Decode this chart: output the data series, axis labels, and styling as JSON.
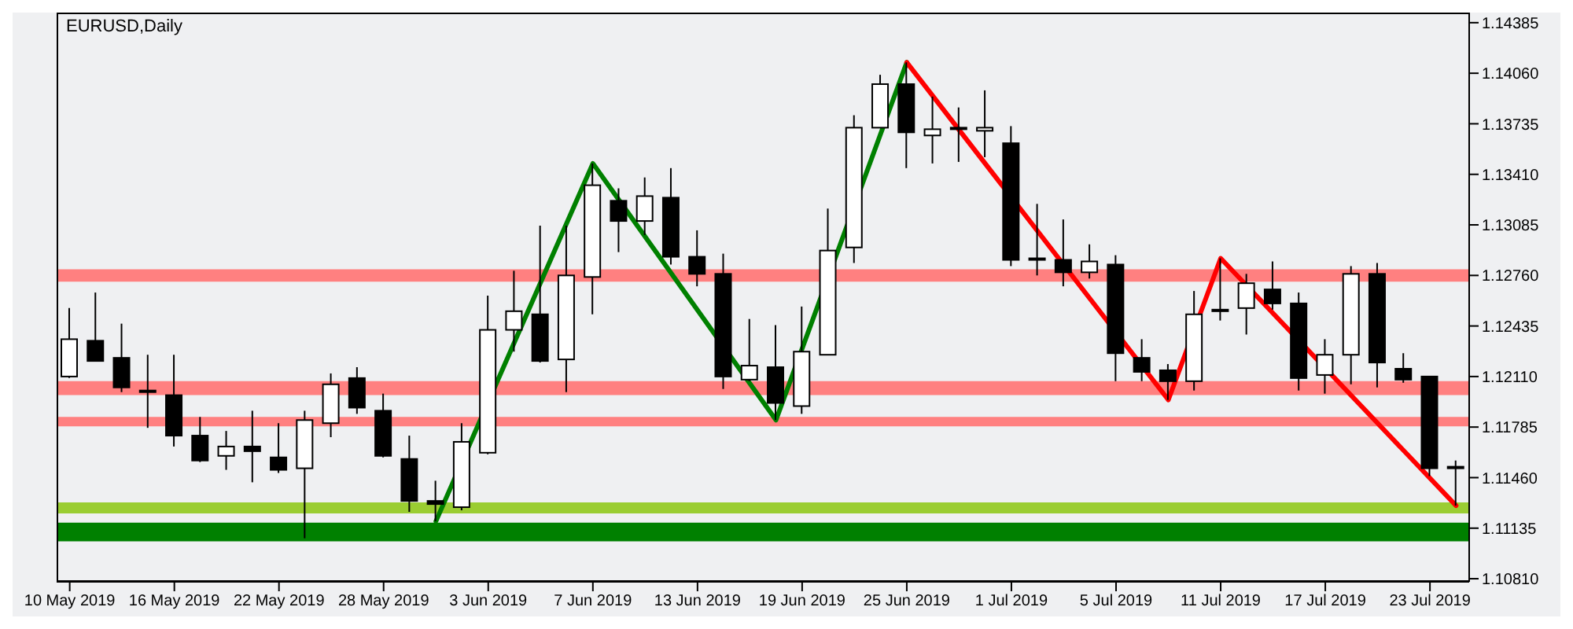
{
  "chart_data": {
    "type": "candlestick",
    "title": "EURUSD,Daily",
    "categories": [
      "10 May 2019",
      null,
      null,
      null,
      "16 May 2019",
      null,
      null,
      null,
      "22 May 2019",
      null,
      null,
      null,
      "28 May 2019",
      null,
      null,
      null,
      "3 Jun 2019",
      null,
      null,
      null,
      "7 Jun 2019",
      null,
      null,
      null,
      "13 Jun 2019",
      null,
      null,
      null,
      "19 Jun 2019",
      null,
      null,
      null,
      "25 Jun 2019",
      null,
      null,
      null,
      "1 Jul 2019",
      null,
      null,
      null,
      "5 Jul 2019",
      null,
      null,
      null,
      "11 Jul 2019",
      null,
      null,
      null,
      "17 Jul 2019",
      null,
      null,
      null,
      "23 Jul 2019",
      null
    ],
    "ohlc": [
      [
        1.1211,
        1.1255,
        1.121,
        1.1235
      ],
      [
        1.1234,
        1.1265,
        1.1221,
        1.1221
      ],
      [
        1.1223,
        1.1245,
        1.1201,
        1.1204
      ],
      [
        1.1201,
        1.1225,
        1.1178,
        1.1202
      ],
      [
        1.1199,
        1.1225,
        1.1166,
        1.1173
      ],
      [
        1.1173,
        1.1185,
        1.1156,
        1.1157
      ],
      [
        1.116,
        1.1176,
        1.1151,
        1.1166
      ],
      [
        1.1166,
        1.1189,
        1.1143,
        1.1163
      ],
      [
        1.1159,
        1.1181,
        1.1149,
        1.1151
      ],
      [
        1.1152,
        1.1189,
        1.1107,
        1.1183
      ],
      [
        1.1181,
        1.1213,
        1.1172,
        1.1206
      ],
      [
        1.121,
        1.1217,
        1.1187,
        1.1191
      ],
      [
        1.1189,
        1.12,
        1.1159,
        1.116
      ],
      [
        1.1158,
        1.1173,
        1.1124,
        1.1131
      ],
      [
        1.1131,
        1.1144,
        1.1118,
        1.1129
      ],
      [
        1.1127,
        1.1181,
        1.1125,
        1.1169
      ],
      [
        1.1162,
        1.1263,
        1.1161,
        1.1241
      ],
      [
        1.1241,
        1.1279,
        1.1227,
        1.1253
      ],
      [
        1.1251,
        1.1308,
        1.122,
        1.1221
      ],
      [
        1.1222,
        1.1308,
        1.1201,
        1.1276
      ],
      [
        1.1275,
        1.1348,
        1.1251,
        1.1334
      ],
      [
        1.1324,
        1.1332,
        1.1291,
        1.1311
      ],
      [
        1.1311,
        1.1339,
        1.1302,
        1.1327
      ],
      [
        1.1326,
        1.1345,
        1.1283,
        1.1288
      ],
      [
        1.1288,
        1.1305,
        1.1269,
        1.1277
      ],
      [
        1.1277,
        1.129,
        1.1203,
        1.1211
      ],
      [
        1.1209,
        1.1248,
        1.1208,
        1.1218
      ],
      [
        1.1217,
        1.1244,
        1.1183,
        1.1194
      ],
      [
        1.1192,
        1.1256,
        1.1187,
        1.1227
      ],
      [
        1.1225,
        1.1319,
        1.1225,
        1.1292
      ],
      [
        1.1294,
        1.1379,
        1.1284,
        1.1371
      ],
      [
        1.1371,
        1.1405,
        1.1371,
        1.1399
      ],
      [
        1.1399,
        1.1413,
        1.1345,
        1.1368
      ],
      [
        1.1366,
        1.1391,
        1.1348,
        1.137
      ],
      [
        1.1371,
        1.1384,
        1.1349,
        1.137
      ],
      [
        1.1369,
        1.1395,
        1.1352,
        1.1371
      ],
      [
        1.1361,
        1.1372,
        1.1282,
        1.1286
      ],
      [
        1.1287,
        1.1322,
        1.1276,
        1.1286
      ],
      [
        1.1286,
        1.1312,
        1.1269,
        1.1278
      ],
      [
        1.1278,
        1.1296,
        1.1274,
        1.1285
      ],
      [
        1.1283,
        1.1289,
        1.1208,
        1.1226
      ],
      [
        1.1223,
        1.1235,
        1.1208,
        1.1214
      ],
      [
        1.1215,
        1.1219,
        1.1196,
        1.1208
      ],
      [
        1.1208,
        1.1266,
        1.1202,
        1.1251
      ],
      [
        1.1254,
        1.1287,
        1.1247,
        1.1253
      ],
      [
        1.1255,
        1.1277,
        1.1238,
        1.1271
      ],
      [
        1.1267,
        1.1285,
        1.1254,
        1.1258
      ],
      [
        1.1258,
        1.1265,
        1.1202,
        1.121
      ],
      [
        1.1212,
        1.1235,
        1.12,
        1.1225
      ],
      [
        1.1225,
        1.1282,
        1.1206,
        1.1277
      ],
      [
        1.1277,
        1.1284,
        1.1204,
        1.122
      ],
      [
        1.1216,
        1.1226,
        1.1207,
        1.1209
      ],
      [
        1.1211,
        1.1211,
        1.1147,
        1.1152
      ],
      [
        1.1152,
        1.1157,
        1.1128,
        1.1153
      ]
    ],
    "series": [
      {
        "type": "line",
        "color": "#008000",
        "values": [
          null,
          null,
          null,
          null,
          null,
          null,
          null,
          null,
          null,
          null,
          null,
          null,
          null,
          null,
          1.1118,
          null,
          null,
          null,
          null,
          null,
          1.1348,
          null,
          null,
          null,
          null,
          null,
          null,
          1.1183,
          null,
          null,
          null,
          null,
          1.1413,
          null,
          null,
          null,
          null,
          null,
          null,
          null,
          null,
          null,
          null,
          null,
          null,
          null,
          null,
          null,
          null,
          null,
          null,
          null,
          null,
          null
        ]
      },
      {
        "type": "line",
        "color": "#ff0000",
        "values": [
          null,
          null,
          null,
          null,
          null,
          null,
          null,
          null,
          null,
          null,
          null,
          null,
          null,
          null,
          null,
          null,
          null,
          null,
          null,
          null,
          null,
          null,
          null,
          null,
          null,
          null,
          null,
          null,
          null,
          null,
          null,
          null,
          1.1413,
          null,
          null,
          null,
          null,
          null,
          null,
          null,
          null,
          null,
          1.1196,
          null,
          1.1287,
          null,
          null,
          null,
          null,
          null,
          null,
          null,
          null,
          1.1128
        ]
      }
    ],
    "bands": [
      {
        "axis": "y",
        "from": 1.1272,
        "to": 1.128,
        "color": "#ff8080"
      },
      {
        "axis": "y",
        "from": 1.1199,
        "to": 1.1208,
        "color": "#ff8080"
      },
      {
        "axis": "y",
        "from": 1.1179,
        "to": 1.1185,
        "color": "#ff8080"
      },
      {
        "axis": "y",
        "from": 1.1123,
        "to": 1.113,
        "color": "#9acd32"
      },
      {
        "axis": "y",
        "from": 1.1105,
        "to": 1.1117,
        "color": "#008000"
      }
    ],
    "ylim": [
      1.1079,
      1.1445
    ],
    "yticks": [
      1.14385,
      {
        "value": 1.1406,
        "label": "1.14060"
      },
      1.13735,
      {
        "value": 1.1341,
        "label": "1.13410"
      },
      1.13085,
      {
        "value": 1.1276,
        "label": "1.12760"
      },
      1.12435,
      {
        "value": 1.1211,
        "label": "1.12110"
      },
      1.11785,
      {
        "value": 1.1146,
        "label": "1.11460"
      },
      1.11135,
      {
        "value": 1.1081,
        "label": "1.10810"
      }
    ],
    "grid": false
  }
}
